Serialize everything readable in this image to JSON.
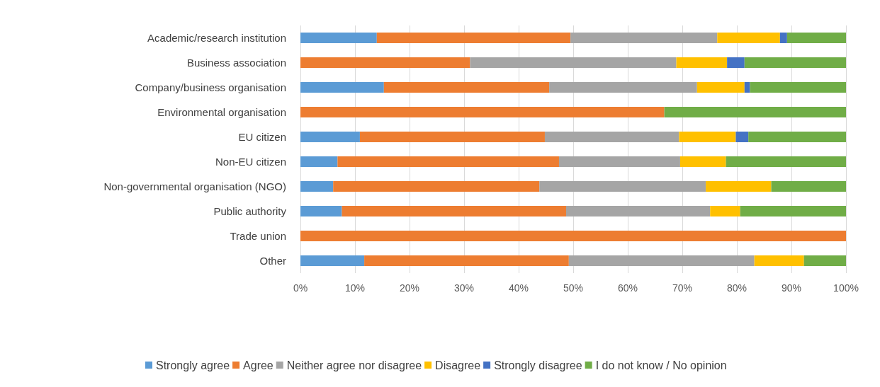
{
  "chart_data": {
    "type": "bar",
    "orientation": "horizontal",
    "stacked": true,
    "categories": [
      "Academic/research institution",
      "Business association",
      "Company/business organisation",
      "Environmental organisation",
      "EU citizen",
      "Non-EU citizen",
      "Non-governmental organisation (NGO)",
      "Public authority",
      "Trade union",
      "Other"
    ],
    "series": [
      {
        "name": "Strongly agree",
        "color": "#5b9bd5",
        "values": [
          14.0,
          null,
          15.3,
          null,
          10.9,
          6.8,
          6.0,
          7.6,
          null,
          11.7
        ]
      },
      {
        "name": "Agree",
        "color": "#ed7d31",
        "values": [
          35.5,
          31.1,
          30.3,
          66.7,
          33.9,
          40.6,
          37.8,
          41.1,
          100,
          37.5
        ]
      },
      {
        "name": "Neither agree nor disagree",
        "color": "#a5a5a5",
        "values": [
          26.9,
          37.8,
          27.1,
          null,
          24.6,
          22.2,
          30.5,
          26.4,
          null,
          34.0
        ]
      },
      {
        "name": "Disagree",
        "color": "#ffc000",
        "values": [
          11.5,
          9.3,
          8.7,
          null,
          10.4,
          8.4,
          12.0,
          5.5,
          null,
          9.1
        ]
      },
      {
        "name": "Strongly disagree",
        "color": "#4472c4",
        "values": [
          1.3,
          3.2,
          1.0,
          null,
          2.3,
          null,
          null,
          null,
          null,
          null
        ]
      },
      {
        "name": "I do not know / No opinion",
        "color": "#70ad47",
        "values": [
          10.8,
          18.6,
          17.6,
          33.3,
          17.9,
          22.0,
          13.7,
          19.4,
          null,
          7.7
        ]
      }
    ],
    "xlim": [
      0,
      100
    ],
    "xticks": [
      {
        "value": 0,
        "label": "0%"
      },
      {
        "value": 10,
        "label": "10%"
      },
      {
        "value": 20,
        "label": "20%"
      },
      {
        "value": 30,
        "label": "30%"
      },
      {
        "value": 40,
        "label": "40%"
      },
      {
        "value": 50,
        "label": "50%"
      },
      {
        "value": 60,
        "label": "60%"
      },
      {
        "value": 70,
        "label": "70%"
      },
      {
        "value": 80,
        "label": "80%"
      },
      {
        "value": 90,
        "label": "90%"
      },
      {
        "value": 100,
        "label": "100%"
      }
    ],
    "grid": "x",
    "legend": "bottom"
  }
}
